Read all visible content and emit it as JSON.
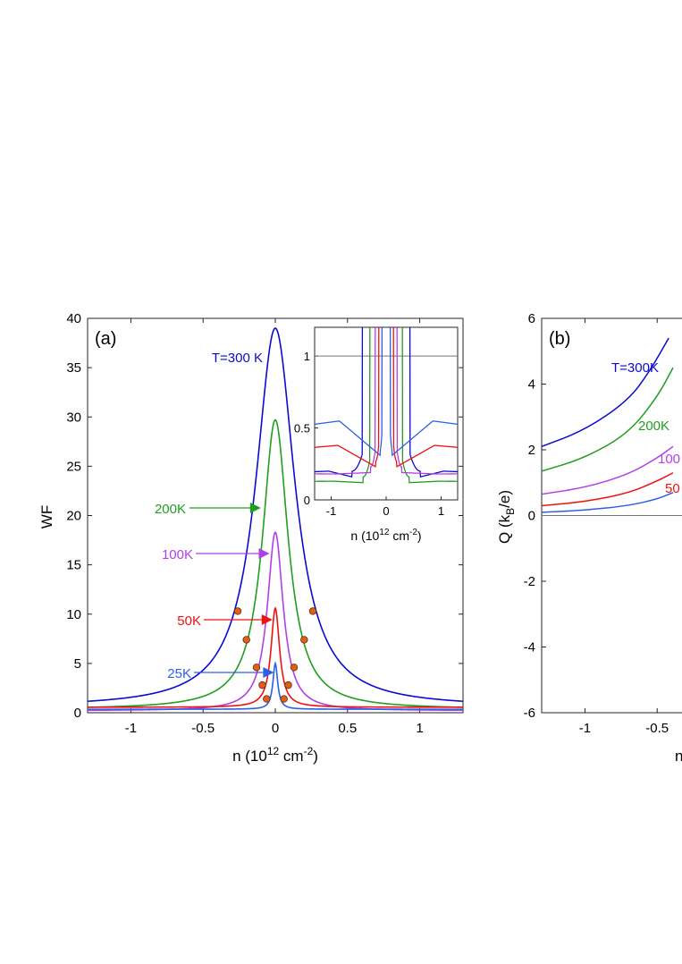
{
  "chart_data": [
    {
      "type": "line",
      "panel_label": "(a)",
      "xlabel": "n (10",
      "xlabel_sup": "12",
      "xlabel_tail": " cm",
      "xlabel_sup2": "-2",
      "xlabel_close": ")",
      "ylabel": "WF",
      "xlim": [
        -1.3,
        1.3
      ],
      "ylim": [
        0,
        40
      ],
      "xticks": [
        -1,
        -0.5,
        0,
        0.5,
        1
      ],
      "xtick_labels": [
        "-1",
        "-0.5",
        "0",
        "0.5",
        "1"
      ],
      "yticks": [
        0,
        5,
        10,
        15,
        20,
        25,
        30,
        35,
        40
      ],
      "ytick_labels": [
        "0",
        "5",
        "10",
        "15",
        "20",
        "25",
        "30",
        "35",
        "40"
      ],
      "series": [
        {
          "name": "T=300 K",
          "color": "#0a0ad2",
          "peak": 39.0,
          "width": 0.165,
          "baseline": 0.55
        },
        {
          "name": "200K",
          "color": "#1f9e1f",
          "peak": 29.7,
          "width": 0.108,
          "baseline": 0.35
        },
        {
          "name": "100K",
          "color": "#b23ee6",
          "peak": 18.3,
          "width": 0.066,
          "baseline": 0.2
        },
        {
          "name": "50K",
          "color": "#ee1111",
          "peak": 10.6,
          "width": 0.036,
          "baseline": 0.55
        },
        {
          "name": "25K",
          "color": "#2a5fe8",
          "peak": 5.0,
          "width": 0.02,
          "baseline": 0.35
        }
      ],
      "annotations": [
        {
          "text": "T=300 K",
          "color": "#0a0ad2"
        },
        {
          "text": "200K",
          "color": "#1f9e1f",
          "arrow_to": [
            -0.1,
            21.9
          ]
        },
        {
          "text": "100K",
          "color": "#b23ee6",
          "arrow_to": [
            -0.04,
            17.3
          ]
        },
        {
          "text": "50K",
          "color": "#ee1111",
          "arrow_to": [
            -0.02,
            9.9
          ]
        },
        {
          "text": "25K",
          "color": "#2a5fe8",
          "arrow_to": [
            -0.01,
            4.3
          ]
        }
      ],
      "markers": {
        "color": "#e0601a",
        "points": [
          [
            -0.26,
            10.3
          ],
          [
            0.26,
            10.3
          ],
          [
            -0.2,
            7.4
          ],
          [
            0.2,
            7.4
          ],
          [
            -0.13,
            4.6
          ],
          [
            0.13,
            4.6
          ],
          [
            -0.09,
            2.8
          ],
          [
            0.09,
            2.8
          ],
          [
            -0.06,
            1.4
          ],
          [
            0.06,
            1.4
          ]
        ]
      },
      "inset": {
        "type": "line",
        "xlabel": "n (10",
        "xlabel_sup": "12",
        "xlabel_tail": " cm",
        "xlabel_sup2": "-2",
        "xlabel_close": ")",
        "xlim": [
          -1.3,
          1.3
        ],
        "ylim": [
          0,
          1.2
        ],
        "xticks": [
          -1,
          0,
          1
        ],
        "xtick_labels": [
          "-1",
          "0",
          "1"
        ],
        "yticks": [
          0,
          0.5,
          1
        ],
        "ytick_labels": [
          "0",
          "0.5",
          "1"
        ],
        "reference_line_y": 1
      }
    },
    {
      "type": "line",
      "panel_label": "(b)",
      "ylabel": "Q (k",
      "ylabel_sub": "B",
      "ylabel_tail": "/e)",
      "xlabel_fragment": "n",
      "xlim": [
        -1.3,
        1.3
      ],
      "ylim": [
        -6,
        6
      ],
      "xticks": [
        -1,
        -0.5
      ],
      "xtick_labels": [
        "-1",
        "-0.5"
      ],
      "yticks": [
        -6,
        -4,
        -2,
        0,
        2,
        4,
        6
      ],
      "ytick_labels": [
        "-6",
        "-4",
        "-2",
        "0",
        "2",
        "4",
        "6"
      ],
      "series": [
        {
          "name": "T=300K",
          "color": "#0a0ad2",
          "points": [
            [
              -1.3,
              2.1
            ],
            [
              -1.0,
              2.6
            ],
            [
              -0.7,
              3.5
            ],
            [
              -0.55,
              4.4
            ],
            [
              -0.42,
              5.4
            ]
          ]
        },
        {
          "name": "200K",
          "color": "#1f9e1f",
          "points": [
            [
              -1.3,
              1.35
            ],
            [
              -1.0,
              1.75
            ],
            [
              -0.7,
              2.5
            ],
            [
              -0.5,
              3.6
            ],
            [
              -0.39,
              4.5
            ]
          ]
        },
        {
          "name": "100K",
          "color": "#b23ee6",
          "points": [
            [
              -1.3,
              0.65
            ],
            [
              -1.0,
              0.85
            ],
            [
              -0.7,
              1.25
            ],
            [
              -0.5,
              1.75
            ],
            [
              -0.39,
              2.1
            ]
          ]
        },
        {
          "name": "50K",
          "color": "#ee1111",
          "points": [
            [
              -1.3,
              0.3
            ],
            [
              -1.0,
              0.42
            ],
            [
              -0.7,
              0.68
            ],
            [
              -0.5,
              1.05
            ],
            [
              -0.39,
              1.3
            ]
          ]
        },
        {
          "name": "25K",
          "color": "#2a5fe8",
          "points": [
            [
              -1.3,
              0.1
            ],
            [
              -1.0,
              0.16
            ],
            [
              -0.7,
              0.3
            ],
            [
              -0.5,
              0.5
            ],
            [
              -0.39,
              0.7
            ]
          ]
        }
      ],
      "labels": [
        {
          "text": "T=300K",
          "color": "#0a0ad2"
        },
        {
          "text": "200K",
          "color": "#1f9e1f"
        },
        {
          "text": "100",
          "color": "#b23ee6"
        },
        {
          "text": "50",
          "color": "#ee1111"
        }
      ]
    }
  ]
}
